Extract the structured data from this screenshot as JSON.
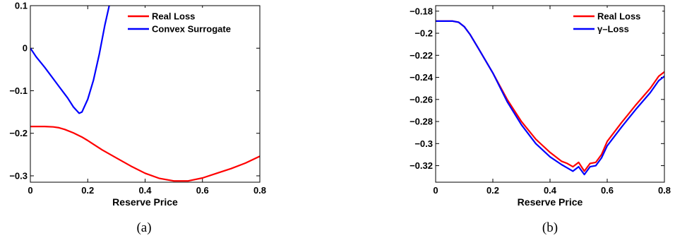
{
  "chart_data": [
    {
      "type": "line",
      "caption": "(a)",
      "xlabel": "Reserve Price",
      "ylabel": "",
      "xlim": [
        0,
        0.8
      ],
      "ylim": [
        -0.315,
        0.1
      ],
      "xticks": [
        "0",
        "0.2",
        "0.4",
        "0.6",
        "0.8"
      ],
      "yticks": [
        "-0.3",
        "-0.2",
        "-0.1",
        "0",
        "0.1"
      ],
      "legend_position": "top-right",
      "grid": false,
      "series": [
        {
          "name": "Real Loss",
          "color": "#ff0000",
          "x": [
            0,
            0.05,
            0.08,
            0.1,
            0.12,
            0.15,
            0.18,
            0.2,
            0.25,
            0.3,
            0.35,
            0.4,
            0.45,
            0.5,
            0.55,
            0.6,
            0.65,
            0.7,
            0.75,
            0.8
          ],
          "y": [
            -0.184,
            -0.184,
            -0.185,
            -0.187,
            -0.191,
            -0.199,
            -0.209,
            -0.217,
            -0.239,
            -0.258,
            -0.277,
            -0.294,
            -0.306,
            -0.312,
            -0.312,
            -0.305,
            -0.294,
            -0.283,
            -0.27,
            -0.254
          ]
        },
        {
          "name": "Convex Surrogate",
          "color": "#0000ff",
          "x": [
            0,
            0.02,
            0.05,
            0.08,
            0.1,
            0.13,
            0.15,
            0.17,
            0.18,
            0.2,
            0.22,
            0.24,
            0.26,
            0.275
          ],
          "y": [
            0,
            -0.02,
            -0.045,
            -0.072,
            -0.09,
            -0.117,
            -0.138,
            -0.153,
            -0.15,
            -0.12,
            -0.075,
            -0.015,
            0.055,
            0.1
          ]
        }
      ]
    },
    {
      "type": "line",
      "caption": "(b)",
      "xlabel": "Reserve Price",
      "ylabel": "",
      "xlim": [
        0,
        0.8
      ],
      "ylim": [
        -0.335,
        -0.175
      ],
      "xticks": [
        "0",
        "0.2",
        "0.4",
        "0.6",
        "0.8"
      ],
      "yticks": [
        "-0.18",
        "-0.2",
        "-0.22",
        "-0.24",
        "-0.26",
        "-0.28",
        "-0.3",
        "-0.32"
      ],
      "legend_position": "top-right",
      "grid": false,
      "series": [
        {
          "name": "Real Loss",
          "color": "#ff0000",
          "x": [
            0,
            0.03,
            0.06,
            0.08,
            0.1,
            0.12,
            0.15,
            0.2,
            0.25,
            0.3,
            0.35,
            0.4,
            0.44,
            0.46,
            0.48,
            0.5,
            0.52,
            0.54,
            0.56,
            0.58,
            0.6,
            0.65,
            0.7,
            0.75,
            0.78,
            0.8
          ],
          "y": [
            -0.189,
            -0.189,
            -0.189,
            -0.19,
            -0.194,
            -0.201,
            -0.214,
            -0.236,
            -0.26,
            -0.28,
            -0.296,
            -0.308,
            -0.316,
            -0.318,
            -0.321,
            -0.317,
            -0.325,
            -0.318,
            -0.317,
            -0.31,
            -0.298,
            -0.281,
            -0.265,
            -0.25,
            -0.239,
            -0.235
          ]
        },
        {
          "name": "γ–Loss",
          "color": "#0000ff",
          "x": [
            0,
            0.03,
            0.06,
            0.08,
            0.1,
            0.12,
            0.15,
            0.2,
            0.25,
            0.3,
            0.35,
            0.4,
            0.44,
            0.46,
            0.48,
            0.5,
            0.52,
            0.54,
            0.56,
            0.58,
            0.6,
            0.65,
            0.7,
            0.75,
            0.78,
            0.8
          ],
          "y": [
            -0.189,
            -0.189,
            -0.189,
            -0.19,
            -0.194,
            -0.201,
            -0.214,
            -0.236,
            -0.262,
            -0.283,
            -0.3,
            -0.312,
            -0.319,
            -0.322,
            -0.325,
            -0.321,
            -0.328,
            -0.321,
            -0.32,
            -0.313,
            -0.302,
            -0.285,
            -0.269,
            -0.254,
            -0.243,
            -0.239
          ]
        }
      ]
    }
  ]
}
